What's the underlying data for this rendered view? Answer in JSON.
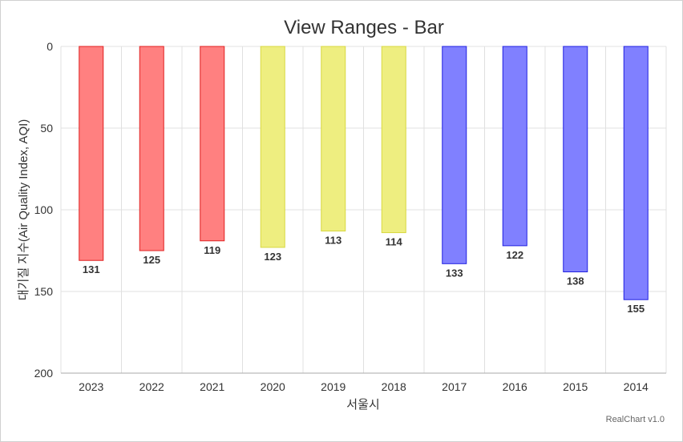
{
  "chart_data": {
    "type": "bar",
    "title": "View Ranges - Bar",
    "xlabel": "서울시",
    "ylabel": "대기질 지수(Air Quality Index, AQI)",
    "categories": [
      "2023",
      "2022",
      "2021",
      "2020",
      "2019",
      "2018",
      "2017",
      "2016",
      "2015",
      "2014"
    ],
    "values": [
      131,
      125,
      119,
      123,
      113,
      114,
      133,
      122,
      138,
      155
    ],
    "data_labels": [
      "131",
      "125",
      "119",
      "123",
      "113",
      "114",
      "133",
      "122",
      "138",
      "155"
    ],
    "ylim": [
      0,
      200
    ],
    "y_reversed": true,
    "y_ticks": [
      0,
      50,
      100,
      150,
      200
    ],
    "y_tick_labels": [
      "0",
      "50",
      "100",
      "150",
      "200"
    ],
    "grid": true,
    "legend": "none",
    "view_ranges": [
      {
        "from_index": 0,
        "to_index": 2,
        "fill": "#ff8080",
        "stroke": "#e02020"
      },
      {
        "from_index": 3,
        "to_index": 5,
        "fill": "#eeee80",
        "stroke": "#d8d840"
      },
      {
        "from_index": 6,
        "to_index": 9,
        "fill": "#8080ff",
        "stroke": "#2020e0"
      }
    ]
  },
  "credit": "RealChart v1.0"
}
